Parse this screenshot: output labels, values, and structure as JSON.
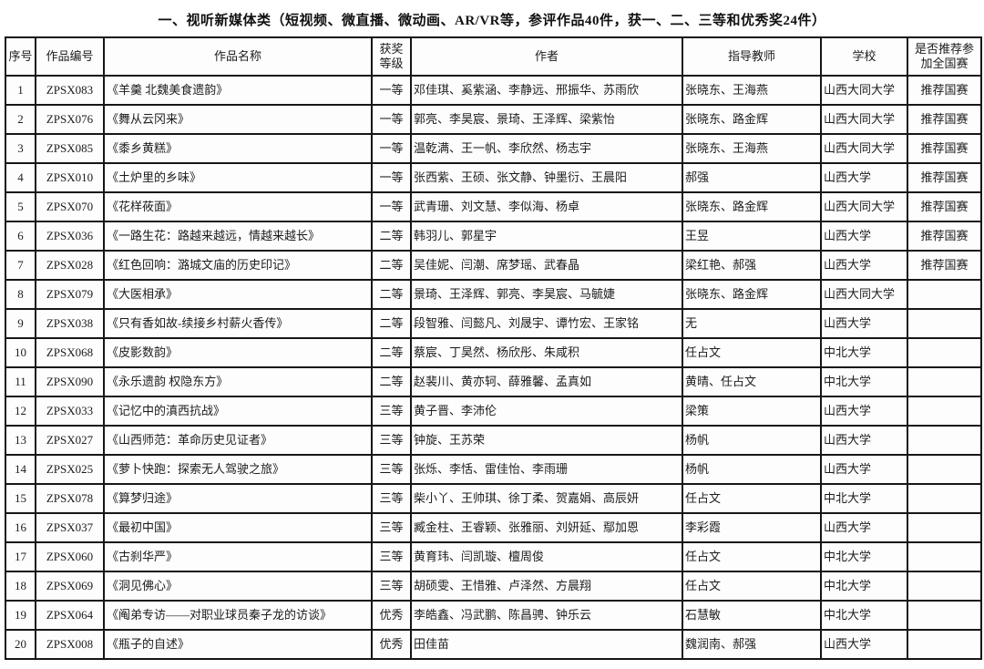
{
  "title": "一、视听新媒体类（短视频、微直播、微动画、AR/VR等，参评作品40件，获一、二、三等和优秀奖24件）",
  "table": {
    "columns": {
      "no": "序号",
      "id": "作品编号",
      "name": "作品名称",
      "award": "获奖等级",
      "authors": "作者",
      "advisors": "指导教师",
      "school": "学校",
      "recommend": "是否推荐参加全国赛"
    },
    "rows": [
      {
        "no": "1",
        "id": "ZPSX083",
        "name": "《羊羹 北魏美食遗韵》",
        "award": "一等",
        "authors": "邓佳琪、奚紫涵、李静远、邢振华、苏雨欣",
        "advisors": "张晓东、王海燕",
        "school": "山西大同大学",
        "recommend": "推荐国赛"
      },
      {
        "no": "2",
        "id": "ZPSX076",
        "name": "《舞从云冈来》",
        "award": "一等",
        "authors": "郭亮、李昊宸、景琦、王泽辉、梁紫怡",
        "advisors": "张晓东、路金辉",
        "school": "山西大同大学",
        "recommend": "推荐国赛"
      },
      {
        "no": "3",
        "id": "ZPSX085",
        "name": "《黍乡黄糕》",
        "award": "一等",
        "authors": "温乾满、王一帆、李欣然、杨志宇",
        "advisors": "张晓东、王海燕",
        "school": "山西大同大学",
        "recommend": "推荐国赛"
      },
      {
        "no": "4",
        "id": "ZPSX010",
        "name": "《土炉里的乡味》",
        "award": "一等",
        "authors": "张西紫、王硕、张文静、钟墨衍、王晨阳",
        "advisors": "郝强",
        "school": "山西大学",
        "recommend": "推荐国赛"
      },
      {
        "no": "5",
        "id": "ZPSX070",
        "name": "《花样莜面》",
        "award": "一等",
        "authors": "武青珊、刘文慧、李似海、杨卓",
        "advisors": "张晓东、路金辉",
        "school": "山西大同大学",
        "recommend": "推荐国赛"
      },
      {
        "no": "6",
        "id": "ZPSX036",
        "name": "《一路生花：路越来越远，情越来越长》",
        "award": "二等",
        "authors": "韩羽儿、郭星宇",
        "advisors": "王昱",
        "school": "山西大学",
        "recommend": "推荐国赛"
      },
      {
        "no": "7",
        "id": "ZPSX028",
        "name": "《红色回响：潞城文庙的历史印记》",
        "award": "二等",
        "authors": "吴佳妮、闫潮、席梦瑶、武春晶",
        "advisors": "梁红艳、郝强",
        "school": "山西大学",
        "recommend": "推荐国赛"
      },
      {
        "no": "8",
        "id": "ZPSX079",
        "name": "《大医相承》",
        "award": "二等",
        "authors": "景琦、王泽辉、郭亮、李昊宸、马毓婕",
        "advisors": "张晓东、路金辉",
        "school": "山西大同大学",
        "recommend": ""
      },
      {
        "no": "9",
        "id": "ZPSX038",
        "name": "《只有香如故-续接乡村薪火香传》",
        "award": "二等",
        "authors": "段智雅、闫懿凡、刘晟宇、谭竹宏、王家铭",
        "advisors": "无",
        "school": "山西大学",
        "recommend": ""
      },
      {
        "no": "10",
        "id": "ZPSX068",
        "name": "《皮影数韵》",
        "award": "二等",
        "authors": "蔡宸、丁昊然、杨欣彤、朱咸积",
        "advisors": "任占文",
        "school": "中北大学",
        "recommend": ""
      },
      {
        "no": "11",
        "id": "ZPSX090",
        "name": "《永乐遗韵 权隐东方》",
        "award": "二等",
        "authors": "赵裴川、黄亦轲、薛雅馨、孟真如",
        "advisors": "黄晴、任占文",
        "school": "中北大学",
        "recommend": ""
      },
      {
        "no": "12",
        "id": "ZPSX033",
        "name": "《记忆中的滇西抗战》",
        "award": "三等",
        "authors": "黄子晋、李沛伦",
        "advisors": "梁策",
        "school": "山西大学",
        "recommend": ""
      },
      {
        "no": "13",
        "id": "ZPSX027",
        "name": "《山西师范：革命历史见证者》",
        "award": "三等",
        "authors": "钟旋、王苏荣",
        "advisors": "杨帆",
        "school": "山西大学",
        "recommend": ""
      },
      {
        "no": "14",
        "id": "ZPSX025",
        "name": "《萝卜快跑：探索无人驾驶之旅》",
        "award": "三等",
        "authors": "张烁、李恬、雷佳怡、李雨珊",
        "advisors": "杨帆",
        "school": "山西大学",
        "recommend": ""
      },
      {
        "no": "15",
        "id": "ZPSX078",
        "name": "《算梦归途》",
        "award": "三等",
        "authors": "柴小丫、王帅琪、徐丁柔、贺嘉娟、高辰妍",
        "advisors": "任占文",
        "school": "中北大学",
        "recommend": ""
      },
      {
        "no": "16",
        "id": "ZPSX037",
        "name": "《最初中国》",
        "award": "三等",
        "authors": "臧金柱、王睿颖、张雅丽、刘妍延、鄢加恩",
        "advisors": "李彩霞",
        "school": "山西大学",
        "recommend": ""
      },
      {
        "no": "17",
        "id": "ZPSX060",
        "name": "《古刹华严》",
        "award": "三等",
        "authors": "黄育玮、闫凯璇、檀周俊",
        "advisors": "任占文",
        "school": "中北大学",
        "recommend": ""
      },
      {
        "no": "18",
        "id": "ZPSX069",
        "name": "《洞见佛心》",
        "award": "三等",
        "authors": "胡硕雯、王惜雅、卢泽然、方晨翔",
        "advisors": "任占文",
        "school": "中北大学",
        "recommend": ""
      },
      {
        "no": "19",
        "id": "ZPSX064",
        "name": "《阄弟专访——对职业球员秦子龙的访谈》",
        "award": "优秀",
        "authors": "李皓鑫、冯武鹏、陈昌骋、钟乐云",
        "advisors": "石慧敏",
        "school": "中北大学",
        "recommend": ""
      },
      {
        "no": "20",
        "id": "ZPSX008",
        "name": "《瓶子的自述》",
        "award": "优秀",
        "authors": "田佳苗",
        "advisors": "魏润南、郝强",
        "school": "山西大学",
        "recommend": ""
      }
    ]
  }
}
